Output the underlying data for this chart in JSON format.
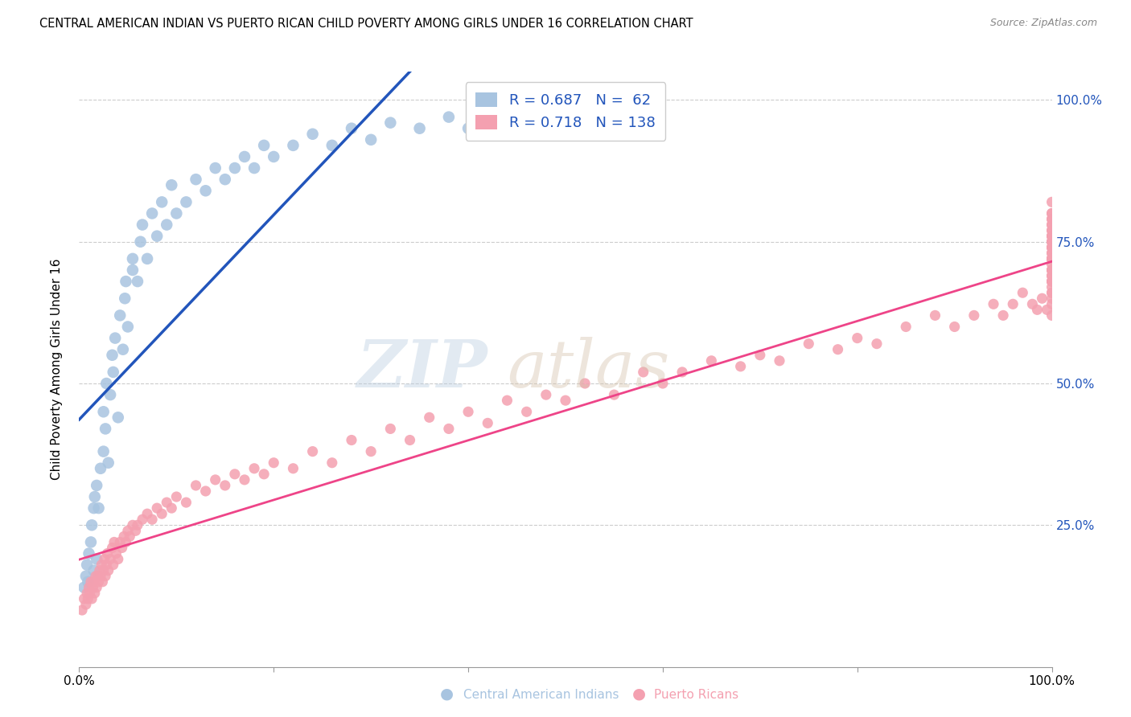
{
  "title": "CENTRAL AMERICAN INDIAN VS PUERTO RICAN CHILD POVERTY AMONG GIRLS UNDER 16 CORRELATION CHART",
  "source": "Source: ZipAtlas.com",
  "ylabel": "Child Poverty Among Girls Under 16",
  "xlim": [
    0.0,
    1.0
  ],
  "ylim": [
    0.0,
    1.05
  ],
  "blue_R": 0.687,
  "blue_N": 62,
  "pink_R": 0.718,
  "pink_N": 138,
  "blue_color": "#A8C4E0",
  "pink_color": "#F4A0B0",
  "blue_line_color": "#2255BB",
  "pink_line_color": "#EE4488",
  "legend_text_color": "#2255BB",
  "blue_scatter_x": [
    0.005,
    0.007,
    0.008,
    0.009,
    0.01,
    0.012,
    0.013,
    0.015,
    0.015,
    0.016,
    0.018,
    0.018,
    0.02,
    0.022,
    0.025,
    0.025,
    0.027,
    0.028,
    0.03,
    0.032,
    0.034,
    0.035,
    0.037,
    0.04,
    0.042,
    0.045,
    0.047,
    0.048,
    0.05,
    0.055,
    0.055,
    0.06,
    0.063,
    0.065,
    0.07,
    0.075,
    0.08,
    0.085,
    0.09,
    0.095,
    0.1,
    0.11,
    0.12,
    0.13,
    0.14,
    0.15,
    0.16,
    0.17,
    0.18,
    0.19,
    0.2,
    0.22,
    0.24,
    0.26,
    0.28,
    0.3,
    0.32,
    0.35,
    0.38,
    0.4,
    0.42,
    0.45
  ],
  "blue_scatter_y": [
    0.14,
    0.16,
    0.18,
    0.15,
    0.2,
    0.22,
    0.25,
    0.17,
    0.28,
    0.3,
    0.19,
    0.32,
    0.28,
    0.35,
    0.38,
    0.45,
    0.42,
    0.5,
    0.36,
    0.48,
    0.55,
    0.52,
    0.58,
    0.44,
    0.62,
    0.56,
    0.65,
    0.68,
    0.6,
    0.7,
    0.72,
    0.68,
    0.75,
    0.78,
    0.72,
    0.8,
    0.76,
    0.82,
    0.78,
    0.85,
    0.8,
    0.82,
    0.86,
    0.84,
    0.88,
    0.86,
    0.88,
    0.9,
    0.88,
    0.92,
    0.9,
    0.92,
    0.94,
    0.92,
    0.95,
    0.93,
    0.96,
    0.95,
    0.97,
    0.95,
    0.97,
    0.98
  ],
  "pink_scatter_x": [
    0.003,
    0.005,
    0.007,
    0.008,
    0.009,
    0.01,
    0.011,
    0.012,
    0.013,
    0.014,
    0.015,
    0.016,
    0.017,
    0.018,
    0.019,
    0.02,
    0.021,
    0.022,
    0.023,
    0.024,
    0.025,
    0.026,
    0.027,
    0.028,
    0.029,
    0.03,
    0.032,
    0.034,
    0.035,
    0.036,
    0.038,
    0.04,
    0.042,
    0.044,
    0.046,
    0.048,
    0.05,
    0.052,
    0.055,
    0.058,
    0.06,
    0.065,
    0.07,
    0.075,
    0.08,
    0.085,
    0.09,
    0.095,
    0.1,
    0.11,
    0.12,
    0.13,
    0.14,
    0.15,
    0.16,
    0.17,
    0.18,
    0.19,
    0.2,
    0.22,
    0.24,
    0.26,
    0.28,
    0.3,
    0.32,
    0.34,
    0.36,
    0.38,
    0.4,
    0.42,
    0.44,
    0.46,
    0.48,
    0.5,
    0.52,
    0.55,
    0.58,
    0.6,
    0.62,
    0.65,
    0.68,
    0.7,
    0.72,
    0.75,
    0.78,
    0.8,
    0.82,
    0.85,
    0.88,
    0.9,
    0.92,
    0.94,
    0.95,
    0.96,
    0.97,
    0.98,
    0.985,
    0.99,
    0.995,
    1.0,
    1.0,
    1.0,
    1.0,
    1.0,
    1.0,
    1.0,
    1.0,
    1.0,
    1.0,
    1.0,
    1.0,
    1.0,
    1.0,
    1.0,
    1.0,
    1.0,
    1.0,
    1.0,
    1.0,
    1.0,
    1.0,
    1.0,
    1.0,
    1.0,
    1.0,
    1.0,
    1.0,
    1.0,
    1.0,
    1.0,
    1.0,
    1.0,
    1.0,
    1.0,
    1.0,
    1.0,
    1.0,
    1.0
  ],
  "pink_scatter_y": [
    0.1,
    0.12,
    0.11,
    0.13,
    0.12,
    0.14,
    0.13,
    0.15,
    0.12,
    0.14,
    0.15,
    0.13,
    0.16,
    0.14,
    0.16,
    0.15,
    0.17,
    0.16,
    0.18,
    0.15,
    0.17,
    0.19,
    0.16,
    0.18,
    0.2,
    0.17,
    0.19,
    0.21,
    0.18,
    0.22,
    0.2,
    0.19,
    0.22,
    0.21,
    0.23,
    0.22,
    0.24,
    0.23,
    0.25,
    0.24,
    0.25,
    0.26,
    0.27,
    0.26,
    0.28,
    0.27,
    0.29,
    0.28,
    0.3,
    0.29,
    0.32,
    0.31,
    0.33,
    0.32,
    0.34,
    0.33,
    0.35,
    0.34,
    0.36,
    0.35,
    0.38,
    0.36,
    0.4,
    0.38,
    0.42,
    0.4,
    0.44,
    0.42,
    0.45,
    0.43,
    0.47,
    0.45,
    0.48,
    0.47,
    0.5,
    0.48,
    0.52,
    0.5,
    0.52,
    0.54,
    0.53,
    0.55,
    0.54,
    0.57,
    0.56,
    0.58,
    0.57,
    0.6,
    0.62,
    0.6,
    0.62,
    0.64,
    0.62,
    0.64,
    0.66,
    0.64,
    0.63,
    0.65,
    0.63,
    0.65,
    0.62,
    0.64,
    0.66,
    0.68,
    0.66,
    0.68,
    0.67,
    0.69,
    0.68,
    0.7,
    0.69,
    0.71,
    0.7,
    0.72,
    0.7,
    0.72,
    0.73,
    0.72,
    0.74,
    0.73,
    0.75,
    0.74,
    0.76,
    0.75,
    0.72,
    0.74,
    0.76,
    0.75,
    0.77,
    0.76,
    0.78,
    0.77,
    0.79,
    0.78,
    0.8,
    0.79,
    0.82,
    0.8
  ]
}
